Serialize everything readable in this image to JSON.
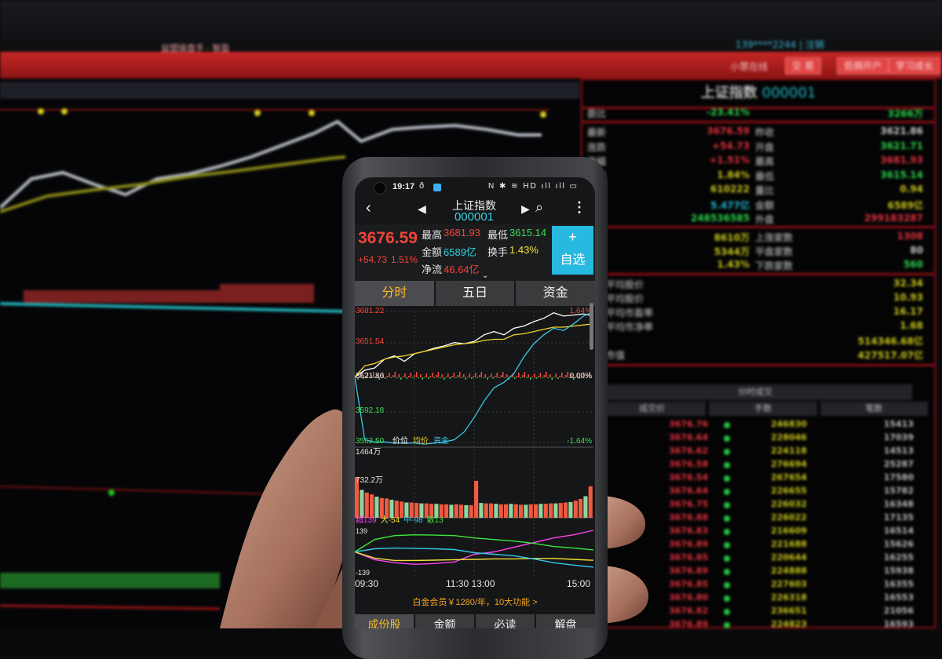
{
  "monitor": {
    "top_info": "139****2244 | 注销",
    "window_title": "益盟操盘手 · 智盈",
    "brand": "小慧在线",
    "buttons": [
      "交 易",
      "低佣开户",
      "学习成长"
    ],
    "panel_title": "上证指数",
    "panel_code": "000001",
    "ratio_row": {
      "label": "委比",
      "value": "-23.41%",
      "right": "3266万"
    },
    "quote_rows": [
      {
        "label": "最新",
        "v1": "3676.59",
        "c1": "#e0303a",
        "k2": "昨收",
        "v2": "3621.86",
        "c2": "#c8c8c8"
      },
      {
        "label": "涨跌",
        "v1": "+54.73",
        "c1": "#e0303a",
        "k2": "开盘",
        "v2": "3621.71",
        "c2": "#2ad14a"
      },
      {
        "label": "涨幅",
        "v1": "+1.51%",
        "c1": "#e0303a",
        "k2": "最高",
        "v2": "3681.93",
        "c2": "#e0303a"
      },
      {
        "label": "振幅",
        "v1": "1.84%",
        "c1": "#c9c61a",
        "k2": "最低",
        "v2": "3615.14",
        "c2": "#2ad14a"
      },
      {
        "label": "",
        "v1": "610222",
        "c1": "#c9c61a",
        "k2": "量比",
        "v2": "0.94",
        "c2": "#c9c61a"
      },
      {
        "label": "",
        "v1": "5.477亿",
        "c1": "#1fb9c9",
        "k2": "金额",
        "v2": "6589亿",
        "c2": "#c9c61a"
      },
      {
        "label": "",
        "v1": "248536585",
        "c1": "#2ad14a",
        "k2": "外盘",
        "v2": "299183287",
        "c2": "#e0303a"
      }
    ],
    "breadth_rows": [
      {
        "v1": "8610万",
        "k2": "上涨家数",
        "v2": "1308",
        "c2": "#e0303a"
      },
      {
        "v1": "5344万",
        "k2": "平盘家数",
        "v2": "80",
        "c2": "#c8c8c8"
      },
      {
        "v1": "1.43%",
        "k2": "下跌家数",
        "v2": "560",
        "c2": "#2ad14a"
      }
    ],
    "stats_rows": [
      {
        "label": "平均股价",
        "value": "32.34"
      },
      {
        "label": "平均股价",
        "value": "10.93"
      },
      {
        "label": "平均市盈率",
        "value": "16.17"
      },
      {
        "label": "平均市净率",
        "value": "1.68"
      },
      {
        "label": "",
        "value": "514346.68亿"
      },
      {
        "label": "市值",
        "value": "427517.07亿"
      }
    ],
    "ticks_header": "分时成交",
    "ticks_columns": [
      "成交价",
      "手数",
      "笔数"
    ],
    "ticks": [
      {
        "price": "3676.76",
        "vol": "246830",
        "n": "15413"
      },
      {
        "price": "3676.64",
        "vol": "228046",
        "n": "17039"
      },
      {
        "price": "3676.62",
        "vol": "224118",
        "n": "14513"
      },
      {
        "price": "3676.58",
        "vol": "276694",
        "n": "25287"
      },
      {
        "price": "3676.54",
        "vol": "267654",
        "n": "17580"
      },
      {
        "price": "3676.64",
        "vol": "226655",
        "n": "15782"
      },
      {
        "price": "3676.75",
        "vol": "226032",
        "n": "16348"
      },
      {
        "price": "3676.88",
        "vol": "226022",
        "n": "17135"
      },
      {
        "price": "3676.83",
        "vol": "216609",
        "n": "16514"
      },
      {
        "price": "3676.89",
        "vol": "221688",
        "n": "15626"
      },
      {
        "price": "3676.85",
        "vol": "220644",
        "n": "16255"
      },
      {
        "price": "3676.89",
        "vol": "224888",
        "n": "15938"
      },
      {
        "price": "3676.85",
        "vol": "227603",
        "n": "16355"
      },
      {
        "price": "3676.80",
        "vol": "226318",
        "n": "16553"
      },
      {
        "price": "3676.82",
        "vol": "236651",
        "n": "21056"
      },
      {
        "price": "3676.89",
        "vol": "224823",
        "n": "16593"
      }
    ]
  },
  "phone": {
    "status": {
      "time": "19:17",
      "icons": [
        "nfc-icon",
        "bluetooth-icon",
        "wifi-icon",
        "hd-icon",
        "signal-icon",
        "signal-icon",
        "battery-icon"
      ]
    },
    "nav": {
      "title": "上证指数",
      "code": "000001"
    },
    "quote": {
      "price": "3676.59",
      "change": "+54.73",
      "change_pct": "1.51%",
      "high_label": "最高",
      "high": "3681.93",
      "low_label": "最低",
      "low": "3615.14",
      "amount_label": "金额",
      "amount": "6589亿",
      "turnover_label": "换手",
      "turnover": "1.43%",
      "netflow_label": "净流",
      "netflow": "46.64亿",
      "watch_plus": "+",
      "watch_label": "自选"
    },
    "tabs": [
      {
        "label": "分时",
        "active": true
      },
      {
        "label": "五日"
      },
      {
        "label": "资金"
      }
    ],
    "price_axis": {
      "top": "3681.22",
      "upper": "3651.54",
      "mid": "3621.86",
      "lower": "3592.18",
      "bottom": "3562.50",
      "top_pct": "1.64%",
      "mid_pct": "0.00%",
      "bottom_pct": "-1.64%"
    },
    "legend": [
      {
        "label": "价位",
        "color": "#ffffff"
      },
      {
        "label": "均价",
        "color": "#f3d22a"
      },
      {
        "label": "资金",
        "color": "#3cc8e8"
      }
    ],
    "volume_axis": {
      "top": "1464万",
      "mid": "732.2万"
    },
    "flow_legend": [
      {
        "label": "超139",
        "color": "#ff44ee"
      },
      {
        "label": "大-54",
        "color": "#f3e13a"
      },
      {
        "label": "中-98",
        "color": "#33c6ee"
      },
      {
        "label": "散13",
        "color": "#3ee63e"
      }
    ],
    "flow_axis": {
      "top": "139",
      "bottom": "-139"
    },
    "time_axis": [
      "09:30",
      "11:30 13:00",
      "15:00"
    ],
    "promo": "白金会员￥1280/年，10大功能 >",
    "bottom_tabs": [
      {
        "label": "成份股",
        "active": true
      },
      {
        "label": "金额"
      },
      {
        "label": "必读"
      },
      {
        "label": "解盘"
      }
    ]
  },
  "chart_data": {
    "type": "line",
    "x_label_ticks": [
      "09:30",
      "11:30 13:00",
      "15:00"
    ],
    "ylim": [
      3562.5,
      3681.22
    ],
    "prev_close": 3621.86,
    "series": [
      {
        "name": "价位",
        "color": "#ffffff",
        "values": [
          3621.9,
          3628,
          3630,
          3638,
          3641,
          3636,
          3643,
          3645,
          3648,
          3650,
          3653,
          3652,
          3654,
          3660,
          3663,
          3660,
          3666,
          3668,
          3672,
          3675,
          3680,
          3677,
          3678,
          3679,
          3677
        ]
      },
      {
        "name": "均价",
        "color": "#f3d22a",
        "values": [
          3621.9,
          3632,
          3634,
          3638,
          3640,
          3641,
          3643,
          3645,
          3647,
          3649,
          3651,
          3652,
          3653,
          3655,
          3656,
          3656,
          3660,
          3661,
          3663,
          3665,
          3667,
          3667,
          3668,
          3669,
          3670
        ]
      },
      {
        "name": "资金",
        "color": "#3cc8e8",
        "values": [
          3621.9,
          3565,
          3563,
          3563,
          3562,
          3562,
          3562,
          3561,
          3562,
          3563,
          3565,
          3572,
          3585,
          3600,
          3612,
          3617,
          3625,
          3640,
          3652,
          3660,
          3666,
          3664,
          3670,
          3677,
          3681
        ]
      }
    ],
    "volume": {
      "ylim": [
        0,
        1464
      ],
      "unit": "万",
      "values": [
        900,
        620,
        560,
        520,
        470,
        440,
        430,
        400,
        380,
        360,
        340,
        340,
        330,
        320,
        320,
        310,
        310,
        300,
        300,
        290,
        300,
        290,
        280,
        280,
        820,
        330,
        320,
        320,
        310,
        300,
        300,
        310,
        300,
        290,
        290,
        300,
        300,
        310,
        310,
        320,
        320,
        330,
        340,
        350,
        380,
        420,
        480,
        700
      ]
    },
    "fund_flow": {
      "ylim": [
        -139,
        139
      ],
      "series": [
        {
          "name": "超",
          "color": "#ff44ee",
          "values": [
            0,
            -50,
            -70,
            -80,
            -75,
            -65,
            -15,
            0,
            30,
            60,
            90,
            110,
            139
          ]
        },
        {
          "name": "大",
          "color": "#f3e13a",
          "values": [
            0,
            -40,
            -55,
            -55,
            -53,
            -50,
            -48,
            -45,
            -45,
            -42,
            -42,
            -48,
            -54
          ]
        },
        {
          "name": "中",
          "color": "#33c6ee",
          "values": [
            0,
            20,
            25,
            22,
            20,
            15,
            -5,
            -15,
            -25,
            -45,
            -70,
            -85,
            -98
          ]
        },
        {
          "name": "散",
          "color": "#3ee63e",
          "values": [
            0,
            80,
            105,
            110,
            108,
            105,
            90,
            80,
            70,
            55,
            35,
            25,
            13
          ]
        }
      ]
    }
  }
}
